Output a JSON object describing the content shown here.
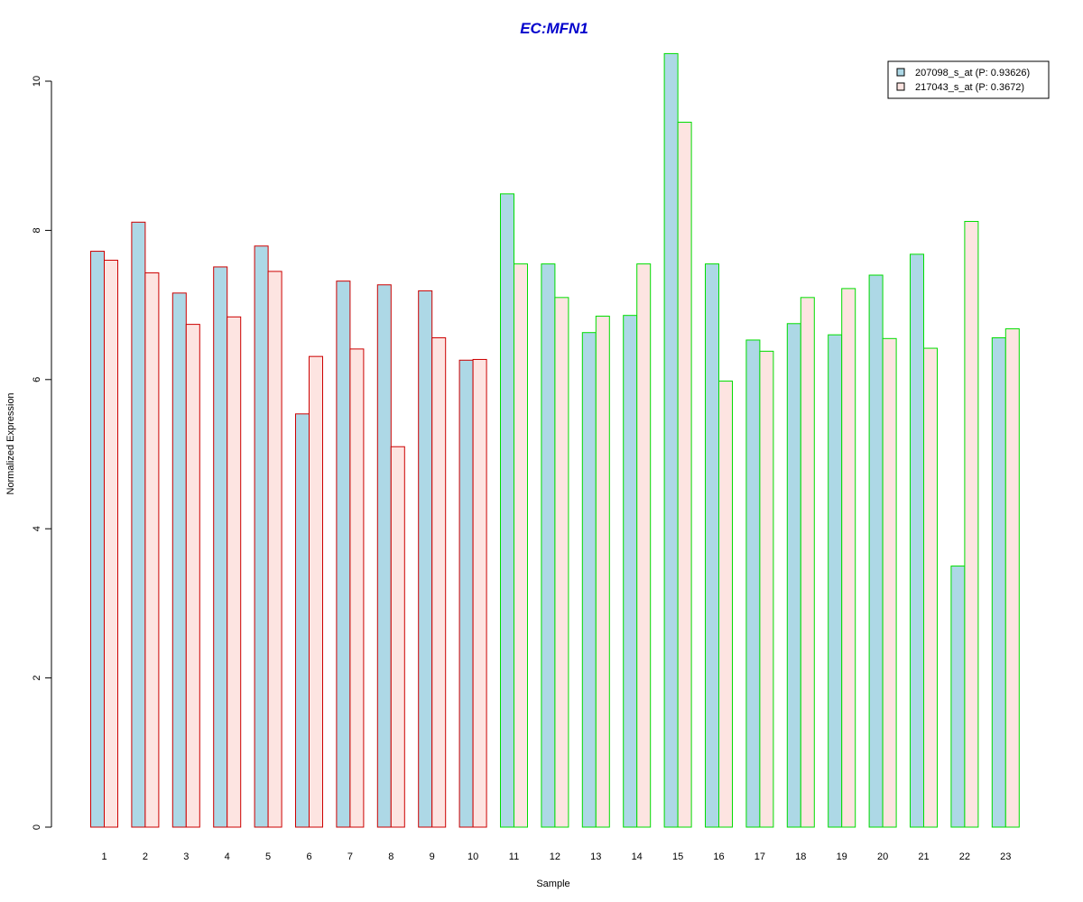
{
  "chart_data": {
    "type": "bar",
    "title": "EC:MFN1",
    "xlabel": "Sample",
    "ylabel": "Normalized Expression",
    "ylim": [
      0,
      10
    ],
    "yticks": [
      0,
      2,
      4,
      6,
      8,
      10
    ],
    "categories": [
      "1",
      "2",
      "3",
      "4",
      "5",
      "6",
      "7",
      "8",
      "9",
      "10",
      "11",
      "12",
      "13",
      "14",
      "15",
      "16",
      "17",
      "18",
      "19",
      "20",
      "21",
      "22",
      "23"
    ],
    "series": [
      {
        "name": "207098_s_at (P: 0.93626)",
        "fill": "#add8e6",
        "values": [
          7.72,
          8.11,
          7.16,
          7.51,
          7.79,
          5.54,
          7.32,
          7.27,
          7.19,
          6.26,
          8.49,
          7.55,
          6.63,
          6.86,
          10.37,
          7.55,
          6.53,
          6.75,
          6.6,
          7.4,
          7.68,
          3.5,
          6.56
        ]
      },
      {
        "name": "217043_s_at (P: 0.3672)",
        "fill": "#fde4e1",
        "values": [
          7.6,
          7.43,
          6.74,
          6.84,
          7.45,
          6.31,
          6.41,
          5.1,
          6.56,
          6.27,
          7.55,
          7.1,
          6.85,
          7.55,
          9.45,
          5.98,
          6.38,
          7.1,
          7.22,
          6.55,
          6.42,
          8.12,
          6.68
        ]
      }
    ],
    "groups": [
      {
        "samples": [
          1,
          2,
          3,
          4,
          5,
          6,
          7,
          8,
          9,
          10
        ],
        "border": "#cc0000"
      },
      {
        "samples": [
          11,
          12,
          13,
          14,
          15,
          16,
          17,
          18,
          19,
          20,
          21,
          22,
          23
        ],
        "border": "#00dd00"
      }
    ],
    "title_color": "#0000cc",
    "legend_position": "top-right",
    "grid": false
  }
}
